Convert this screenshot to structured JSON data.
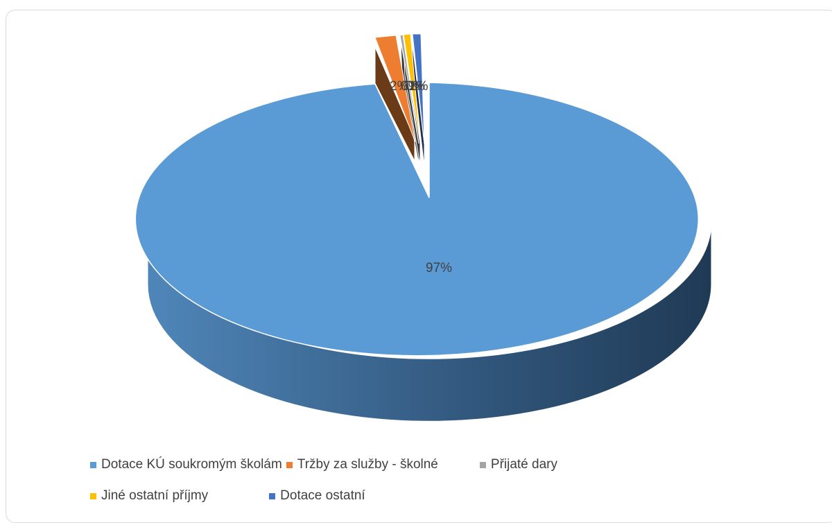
{
  "chart_data": {
    "type": "pie",
    "style": "3d-exploded",
    "title": "",
    "categories": [
      "Dotace KÚ soukromým školám",
      "Tržby za služby - školné",
      "Přijaté dary",
      "Jiné ostatní příjmy",
      "Dotace ostatní"
    ],
    "values": [
      97,
      2,
      0,
      0.5,
      0.5
    ],
    "data_labels": [
      "97%",
      "2%",
      "0%",
      "0%",
      "1%"
    ],
    "colors": [
      "#5B9BD5",
      "#ED7D31",
      "#A5A5A5",
      "#FFC000",
      "#4472C4"
    ],
    "legend_position": "bottom"
  }
}
